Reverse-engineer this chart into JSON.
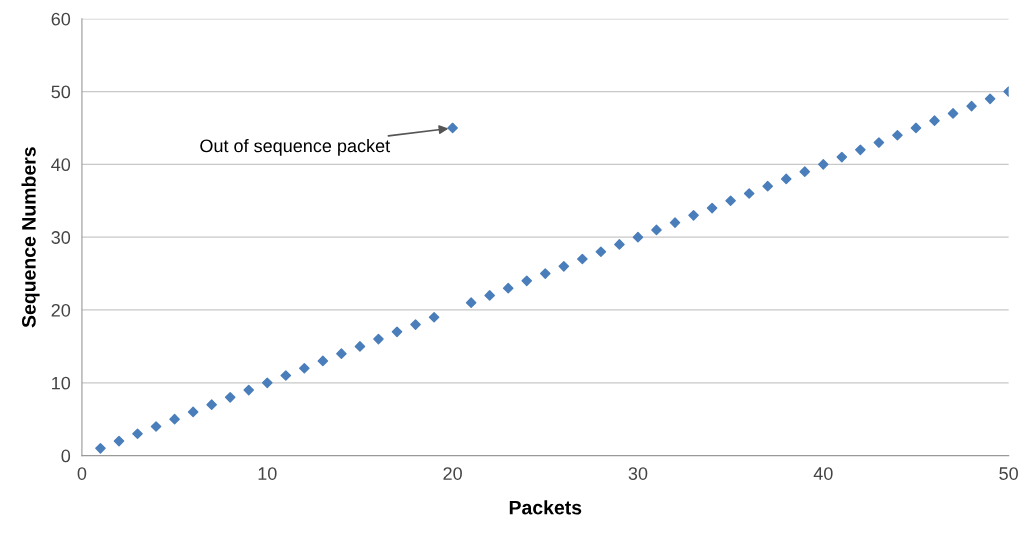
{
  "chart_data": {
    "type": "scatter",
    "xlabel": "Packets",
    "ylabel": "Sequence Numbers",
    "x": [
      1,
      2,
      3,
      4,
      5,
      6,
      7,
      8,
      9,
      10,
      11,
      12,
      13,
      14,
      15,
      16,
      17,
      18,
      19,
      20,
      21,
      22,
      23,
      24,
      25,
      26,
      27,
      28,
      29,
      30,
      31,
      32,
      33,
      34,
      35,
      36,
      37,
      38,
      39,
      40,
      41,
      42,
      43,
      44,
      45,
      46,
      47,
      48,
      49,
      50
    ],
    "series": [
      {
        "color": "#4a7ebb",
        "values": [
          1,
          2,
          3,
          4,
          5,
          6,
          7,
          8,
          9,
          10,
          11,
          12,
          13,
          14,
          15,
          16,
          17,
          18,
          19,
          45,
          21,
          22,
          23,
          24,
          25,
          26,
          27,
          28,
          29,
          30,
          31,
          32,
          33,
          34,
          35,
          36,
          37,
          38,
          39,
          40,
          41,
          42,
          43,
          44,
          45,
          46,
          47,
          48,
          49,
          50
        ]
      }
    ],
    "xlim": [
      0,
      50
    ],
    "xticks": [
      0,
      10,
      20,
      30,
      40,
      50
    ],
    "ylim": [
      0,
      60
    ],
    "yticks": [
      0,
      10,
      20,
      30,
      40,
      50,
      60
    ],
    "grid": "y",
    "marker": "diamond",
    "annotations": [
      {
        "text": "Out of sequence packet",
        "x": 20,
        "y": 45
      }
    ]
  }
}
